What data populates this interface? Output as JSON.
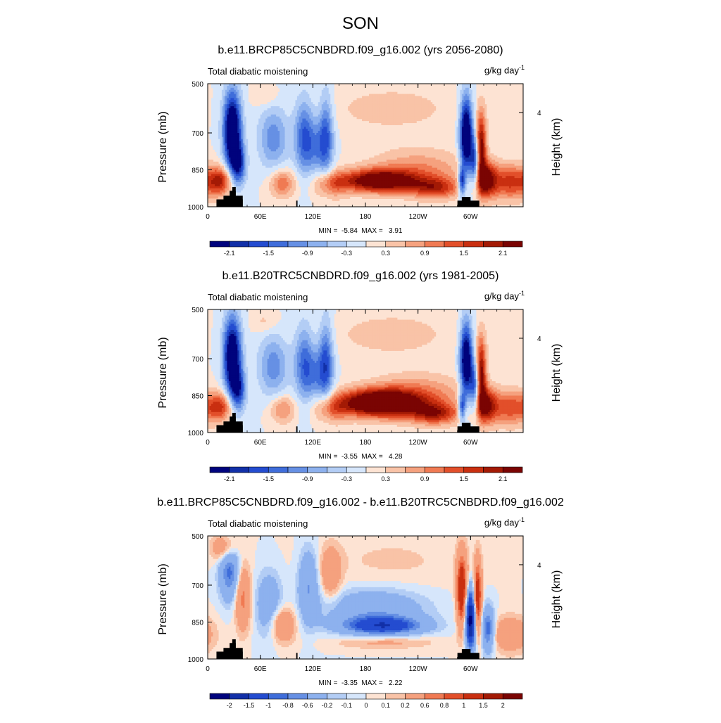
{
  "figure_title": "SON",
  "colors": {
    "positive_scale": [
      "#fde3d3",
      "#f9c3a7",
      "#f5a17e",
      "#f07a53",
      "#e24f2a",
      "#c92f10",
      "#a31a05",
      "#7a0403"
    ],
    "negative_scale": [
      "#d6e6fb",
      "#b3cdf5",
      "#8db1ee",
      "#6690e4",
      "#3f6dda",
      "#244cd0",
      "#1230a8",
      "#00037d"
    ],
    "land_mask": "#000000"
  },
  "chart_data": [
    {
      "type": "heatmap",
      "title": "b.e11.BRCP85C5CNBDRD.f09_g16.002 (yrs 2056-2080)",
      "left_string": "Total diabatic moistening",
      "units": "g/kg day",
      "units_superscript": "-1",
      "ylabel": "Pressure (mb)",
      "right_label": "Height (km)",
      "x_ticks": [
        "0",
        "60E",
        "120E",
        "180",
        "120W",
        "60W"
      ],
      "y_ticks": [
        "500",
        "700",
        "850",
        "1000"
      ],
      "right_ticks": [
        "4"
      ],
      "xlim": [
        0,
        360
      ],
      "ylim": [
        1000,
        500
      ],
      "min_label": "MIN =  -5.84  MAX =   3.91",
      "min": -5.84,
      "max": 3.91,
      "colorbar_labels": [
        "-2.1",
        "-1.5",
        "-0.9",
        "-0.3",
        "0.3",
        "0.9",
        "1.5",
        "2.1"
      ],
      "levels": [
        -2.4,
        -2.1,
        -1.8,
        -1.5,
        -1.2,
        -0.9,
        -0.6,
        -0.3,
        0,
        0.3,
        0.6,
        0.9,
        1.2,
        1.5,
        1.8,
        2.1,
        2.4
      ],
      "features": [
        {
          "lon": 28,
          "p": 690,
          "amp": -3.2,
          "slon": 7,
          "sp": 110
        },
        {
          "lon": 35,
          "p": 830,
          "amp": -1.8,
          "slon": 6,
          "sp": 60
        },
        {
          "lon": 75,
          "p": 720,
          "amp": -1.1,
          "slon": 12,
          "sp": 90
        },
        {
          "lon": 110,
          "p": 710,
          "amp": -1.4,
          "slon": 8,
          "sp": 110
        },
        {
          "lon": 135,
          "p": 700,
          "amp": -1.3,
          "slon": 6,
          "sp": 120
        },
        {
          "lon": 125,
          "p": 760,
          "amp": -0.9,
          "slon": 10,
          "sp": 80
        },
        {
          "lon": 295,
          "p": 710,
          "amp": -3.2,
          "slon": 5,
          "sp": 110
        },
        {
          "lon": 305,
          "p": 820,
          "amp": -2.0,
          "slon": 4,
          "sp": 70
        },
        {
          "lon": 290,
          "p": 900,
          "amp": -2.0,
          "slon": 3,
          "sp": 40
        },
        {
          "lon": 210,
          "p": 600,
          "amp": 0.45,
          "slon": 55,
          "sp": 70
        },
        {
          "lon": 195,
          "p": 895,
          "amp": 2.7,
          "slon": 30,
          "sp": 32
        },
        {
          "lon": 240,
          "p": 850,
          "amp": 0.9,
          "slon": 40,
          "sp": 60
        },
        {
          "lon": 260,
          "p": 925,
          "amp": 1.5,
          "slon": 20,
          "sp": 30
        },
        {
          "lon": 312,
          "p": 760,
          "amp": 2.4,
          "slon": 4,
          "sp": 100
        },
        {
          "lon": 318,
          "p": 890,
          "amp": 2.0,
          "slon": 8,
          "sp": 50
        },
        {
          "lon": 345,
          "p": 900,
          "amp": 1.6,
          "slon": 18,
          "sp": 50
        },
        {
          "lon": 15,
          "p": 895,
          "amp": 1.6,
          "slon": 10,
          "sp": 40
        },
        {
          "lon": 85,
          "p": 905,
          "amp": 1.2,
          "slon": 10,
          "sp": 40
        },
        {
          "lon": 140,
          "p": 910,
          "amp": 1.0,
          "slon": 14,
          "sp": 40
        },
        {
          "lon": 65,
          "p": 550,
          "amp": 0.4,
          "slon": 10,
          "sp": 30
        }
      ]
    },
    {
      "type": "heatmap",
      "title": "b.e11.B20TRC5CNBDRD.f09_g16.002 (yrs 1981-2005)",
      "left_string": "Total diabatic moistening",
      "units": "g/kg day",
      "units_superscript": "-1",
      "ylabel": "Pressure (mb)",
      "right_label": "Height (km)",
      "x_ticks": [
        "0",
        "60E",
        "120E",
        "180",
        "120W",
        "60W"
      ],
      "y_ticks": [
        "500",
        "700",
        "850",
        "1000"
      ],
      "right_ticks": [
        "4"
      ],
      "xlim": [
        0,
        360
      ],
      "ylim": [
        1000,
        500
      ],
      "min_label": "MIN =  -3.55  MAX =   4.28",
      "min": -3.55,
      "max": 4.28,
      "colorbar_labels": [
        "-2.1",
        "-1.5",
        "-0.9",
        "-0.3",
        "0.3",
        "0.9",
        "1.5",
        "2.1"
      ],
      "levels": [
        -2.4,
        -2.1,
        -1.8,
        -1.5,
        -1.2,
        -0.9,
        -0.6,
        -0.3,
        0,
        0.3,
        0.6,
        0.9,
        1.2,
        1.5,
        1.8,
        2.1,
        2.4
      ],
      "features": [
        {
          "lon": 28,
          "p": 690,
          "amp": -3.0,
          "slon": 7,
          "sp": 110
        },
        {
          "lon": 35,
          "p": 830,
          "amp": -1.6,
          "slon": 6,
          "sp": 60
        },
        {
          "lon": 75,
          "p": 730,
          "amp": -1.1,
          "slon": 12,
          "sp": 90
        },
        {
          "lon": 110,
          "p": 715,
          "amp": -1.3,
          "slon": 8,
          "sp": 110
        },
        {
          "lon": 135,
          "p": 700,
          "amp": -1.4,
          "slon": 6,
          "sp": 120
        },
        {
          "lon": 125,
          "p": 770,
          "amp": -0.9,
          "slon": 10,
          "sp": 80
        },
        {
          "lon": 295,
          "p": 710,
          "amp": -3.0,
          "slon": 5,
          "sp": 110
        },
        {
          "lon": 305,
          "p": 820,
          "amp": -1.8,
          "slon": 4,
          "sp": 70
        },
        {
          "lon": 290,
          "p": 900,
          "amp": -1.8,
          "slon": 3,
          "sp": 40
        },
        {
          "lon": 210,
          "p": 600,
          "amp": 0.45,
          "slon": 55,
          "sp": 70
        },
        {
          "lon": 195,
          "p": 880,
          "amp": 3.2,
          "slon": 32,
          "sp": 38
        },
        {
          "lon": 240,
          "p": 850,
          "amp": 1.0,
          "slon": 40,
          "sp": 60
        },
        {
          "lon": 260,
          "p": 925,
          "amp": 1.6,
          "slon": 20,
          "sp": 30
        },
        {
          "lon": 312,
          "p": 760,
          "amp": 2.3,
          "slon": 4,
          "sp": 100
        },
        {
          "lon": 318,
          "p": 890,
          "amp": 1.8,
          "slon": 8,
          "sp": 50
        },
        {
          "lon": 345,
          "p": 900,
          "amp": 1.4,
          "slon": 18,
          "sp": 50
        },
        {
          "lon": 15,
          "p": 895,
          "amp": 1.4,
          "slon": 10,
          "sp": 40
        },
        {
          "lon": 85,
          "p": 905,
          "amp": 1.0,
          "slon": 10,
          "sp": 40
        },
        {
          "lon": 140,
          "p": 910,
          "amp": 0.9,
          "slon": 14,
          "sp": 40
        },
        {
          "lon": 65,
          "p": 550,
          "amp": 0.4,
          "slon": 10,
          "sp": 30
        }
      ]
    },
    {
      "type": "heatmap",
      "title": "b.e11.BRCP85C5CNBDRD.f09_g16.002 - b.e11.B20TRC5CNBDRD.f09_g16.002",
      "left_string": "Total diabatic moistening",
      "units": "g/kg day",
      "units_superscript": "-1",
      "ylabel": "Pressure (mb)",
      "right_label": "Height (km)",
      "x_ticks": [
        "0",
        "60E",
        "120E",
        "180",
        "120W",
        "60W"
      ],
      "y_ticks": [
        "500",
        "700",
        "850",
        "1000"
      ],
      "right_ticks": [
        "4"
      ],
      "xlim": [
        0,
        360
      ],
      "ylim": [
        1000,
        500
      ],
      "min_label": "MIN =  -3.35  MAX =   2.22",
      "min": -3.35,
      "max": 2.22,
      "colorbar_labels": [
        "-2",
        "-1.5",
        "-1",
        "-0.8",
        "-0.6",
        "-0.2",
        "-0.1",
        "0",
        "0.1",
        "0.2",
        "0.6",
        "0.8",
        "1",
        "1.5",
        "2"
      ],
      "levels": [
        -2.5,
        -2,
        -1.5,
        -1,
        -0.8,
        -0.6,
        -0.2,
        -0.1,
        0,
        0.1,
        0.2,
        0.6,
        0.8,
        1,
        1.5,
        2,
        2.5
      ],
      "features": [
        {
          "lon": 25,
          "p": 640,
          "amp": -0.9,
          "slon": 8,
          "sp": 80
        },
        {
          "lon": 40,
          "p": 750,
          "amp": 0.7,
          "slon": 6,
          "sp": 90
        },
        {
          "lon": 70,
          "p": 780,
          "amp": -0.5,
          "slon": 10,
          "sp": 90
        },
        {
          "lon": 85,
          "p": 860,
          "amp": 0.6,
          "slon": 10,
          "sp": 50
        },
        {
          "lon": 115,
          "p": 700,
          "amp": -0.6,
          "slon": 8,
          "sp": 100
        },
        {
          "lon": 140,
          "p": 650,
          "amp": 0.5,
          "slon": 8,
          "sp": 70
        },
        {
          "lon": 200,
          "p": 865,
          "amp": -1.3,
          "slon": 30,
          "sp": 25
        },
        {
          "lon": 190,
          "p": 800,
          "amp": -0.5,
          "slon": 40,
          "sp": 60
        },
        {
          "lon": 200,
          "p": 930,
          "amp": 0.3,
          "slon": 40,
          "sp": 20
        },
        {
          "lon": 210,
          "p": 600,
          "amp": 0.12,
          "slon": 60,
          "sp": 80
        },
        {
          "lon": 290,
          "p": 720,
          "amp": 1.5,
          "slon": 4,
          "sp": 100
        },
        {
          "lon": 300,
          "p": 840,
          "amp": -2.2,
          "slon": 4,
          "sp": 80
        },
        {
          "lon": 308,
          "p": 750,
          "amp": 1.4,
          "slon": 3,
          "sp": 100
        },
        {
          "lon": 320,
          "p": 880,
          "amp": -1.0,
          "slon": 5,
          "sp": 60
        },
        {
          "lon": 345,
          "p": 900,
          "amp": 0.5,
          "slon": 15,
          "sp": 50
        },
        {
          "lon": 20,
          "p": 550,
          "amp": 0.6,
          "slon": 10,
          "sp": 40
        }
      ]
    }
  ]
}
